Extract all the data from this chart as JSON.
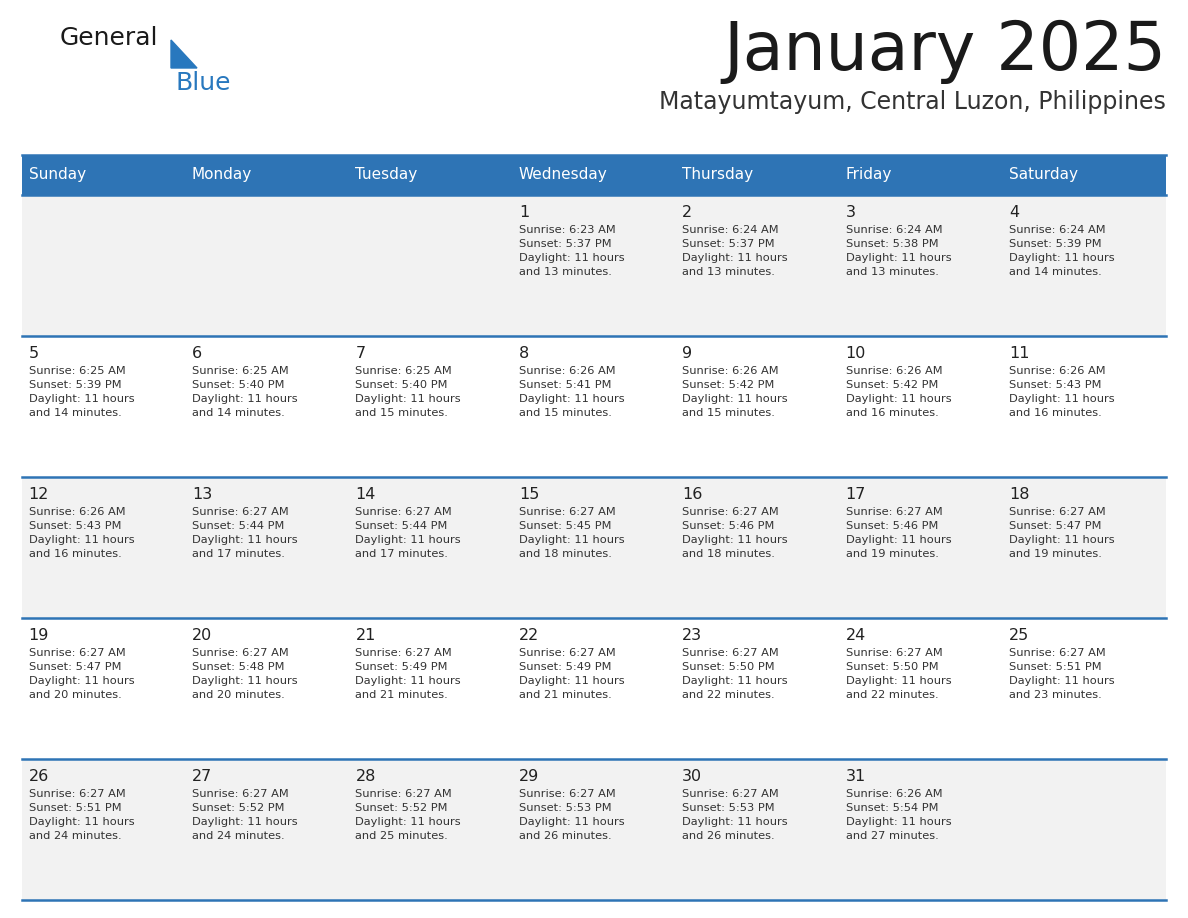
{
  "title": "January 2025",
  "subtitle": "Matayumtayum, Central Luzon, Philippines",
  "header_bg_color": "#2E74B5",
  "header_text_color": "#FFFFFF",
  "day_names": [
    "Sunday",
    "Monday",
    "Tuesday",
    "Wednesday",
    "Thursday",
    "Friday",
    "Saturday"
  ],
  "row_bg_even": "#F2F2F2",
  "row_bg_odd": "#FFFFFF",
  "cell_border_color": "#2E74B5",
  "day_num_color": "#222222",
  "info_text_color": "#333333",
  "logo_general_color": "#1a1a1a",
  "logo_blue_color": "#2878BE",
  "weeks": [
    [
      {
        "day": 0,
        "info": ""
      },
      {
        "day": 0,
        "info": ""
      },
      {
        "day": 0,
        "info": ""
      },
      {
        "day": 1,
        "info": "Sunrise: 6:23 AM\nSunset: 5:37 PM\nDaylight: 11 hours\nand 13 minutes."
      },
      {
        "day": 2,
        "info": "Sunrise: 6:24 AM\nSunset: 5:37 PM\nDaylight: 11 hours\nand 13 minutes."
      },
      {
        "day": 3,
        "info": "Sunrise: 6:24 AM\nSunset: 5:38 PM\nDaylight: 11 hours\nand 13 minutes."
      },
      {
        "day": 4,
        "info": "Sunrise: 6:24 AM\nSunset: 5:39 PM\nDaylight: 11 hours\nand 14 minutes."
      }
    ],
    [
      {
        "day": 5,
        "info": "Sunrise: 6:25 AM\nSunset: 5:39 PM\nDaylight: 11 hours\nand 14 minutes."
      },
      {
        "day": 6,
        "info": "Sunrise: 6:25 AM\nSunset: 5:40 PM\nDaylight: 11 hours\nand 14 minutes."
      },
      {
        "day": 7,
        "info": "Sunrise: 6:25 AM\nSunset: 5:40 PM\nDaylight: 11 hours\nand 15 minutes."
      },
      {
        "day": 8,
        "info": "Sunrise: 6:26 AM\nSunset: 5:41 PM\nDaylight: 11 hours\nand 15 minutes."
      },
      {
        "day": 9,
        "info": "Sunrise: 6:26 AM\nSunset: 5:42 PM\nDaylight: 11 hours\nand 15 minutes."
      },
      {
        "day": 10,
        "info": "Sunrise: 6:26 AM\nSunset: 5:42 PM\nDaylight: 11 hours\nand 16 minutes."
      },
      {
        "day": 11,
        "info": "Sunrise: 6:26 AM\nSunset: 5:43 PM\nDaylight: 11 hours\nand 16 minutes."
      }
    ],
    [
      {
        "day": 12,
        "info": "Sunrise: 6:26 AM\nSunset: 5:43 PM\nDaylight: 11 hours\nand 16 minutes."
      },
      {
        "day": 13,
        "info": "Sunrise: 6:27 AM\nSunset: 5:44 PM\nDaylight: 11 hours\nand 17 minutes."
      },
      {
        "day": 14,
        "info": "Sunrise: 6:27 AM\nSunset: 5:44 PM\nDaylight: 11 hours\nand 17 minutes."
      },
      {
        "day": 15,
        "info": "Sunrise: 6:27 AM\nSunset: 5:45 PM\nDaylight: 11 hours\nand 18 minutes."
      },
      {
        "day": 16,
        "info": "Sunrise: 6:27 AM\nSunset: 5:46 PM\nDaylight: 11 hours\nand 18 minutes."
      },
      {
        "day": 17,
        "info": "Sunrise: 6:27 AM\nSunset: 5:46 PM\nDaylight: 11 hours\nand 19 minutes."
      },
      {
        "day": 18,
        "info": "Sunrise: 6:27 AM\nSunset: 5:47 PM\nDaylight: 11 hours\nand 19 minutes."
      }
    ],
    [
      {
        "day": 19,
        "info": "Sunrise: 6:27 AM\nSunset: 5:47 PM\nDaylight: 11 hours\nand 20 minutes."
      },
      {
        "day": 20,
        "info": "Sunrise: 6:27 AM\nSunset: 5:48 PM\nDaylight: 11 hours\nand 20 minutes."
      },
      {
        "day": 21,
        "info": "Sunrise: 6:27 AM\nSunset: 5:49 PM\nDaylight: 11 hours\nand 21 minutes."
      },
      {
        "day": 22,
        "info": "Sunrise: 6:27 AM\nSunset: 5:49 PM\nDaylight: 11 hours\nand 21 minutes."
      },
      {
        "day": 23,
        "info": "Sunrise: 6:27 AM\nSunset: 5:50 PM\nDaylight: 11 hours\nand 22 minutes."
      },
      {
        "day": 24,
        "info": "Sunrise: 6:27 AM\nSunset: 5:50 PM\nDaylight: 11 hours\nand 22 minutes."
      },
      {
        "day": 25,
        "info": "Sunrise: 6:27 AM\nSunset: 5:51 PM\nDaylight: 11 hours\nand 23 minutes."
      }
    ],
    [
      {
        "day": 26,
        "info": "Sunrise: 6:27 AM\nSunset: 5:51 PM\nDaylight: 11 hours\nand 24 minutes."
      },
      {
        "day": 27,
        "info": "Sunrise: 6:27 AM\nSunset: 5:52 PM\nDaylight: 11 hours\nand 24 minutes."
      },
      {
        "day": 28,
        "info": "Sunrise: 6:27 AM\nSunset: 5:52 PM\nDaylight: 11 hours\nand 25 minutes."
      },
      {
        "day": 29,
        "info": "Sunrise: 6:27 AM\nSunset: 5:53 PM\nDaylight: 11 hours\nand 26 minutes."
      },
      {
        "day": 30,
        "info": "Sunrise: 6:27 AM\nSunset: 5:53 PM\nDaylight: 11 hours\nand 26 minutes."
      },
      {
        "day": 31,
        "info": "Sunrise: 6:26 AM\nSunset: 5:54 PM\nDaylight: 11 hours\nand 27 minutes."
      },
      {
        "day": 0,
        "info": ""
      }
    ]
  ]
}
